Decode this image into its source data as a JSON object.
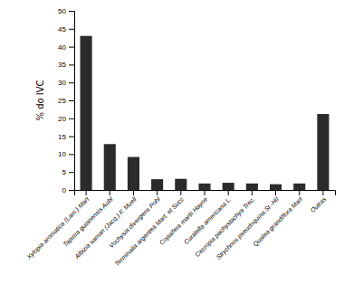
{
  "chart_data": {
    "type": "bar",
    "ylabel": "% do IVC",
    "categories": [
      "Xylopia aromatica (Lam.) Mart",
      "Tapirira guianensis Aubl",
      "Albizia saman (Jacq.) F. Muell",
      "Vochysia divergens Pohl",
      "Terminalia argentea Mart. et Succ",
      "Copaifera martii Hayne",
      "Curatella americana L.",
      "Cecropia pachystachya Trec.",
      "Strychnos pseudoquina St.-Hil",
      "Qualea grandiflora Mart",
      "Outras"
    ],
    "values": [
      43.0,
      12.8,
      9.2,
      3.0,
      3.1,
      1.8,
      2.0,
      1.8,
      1.6,
      1.8,
      21.2
    ],
    "color": "#2b2b2b",
    "ylim": [
      0,
      50
    ],
    "yticks": [
      0,
      5,
      10,
      15,
      20,
      25,
      30,
      35,
      40,
      45,
      50
    ],
    "grid": false
  }
}
